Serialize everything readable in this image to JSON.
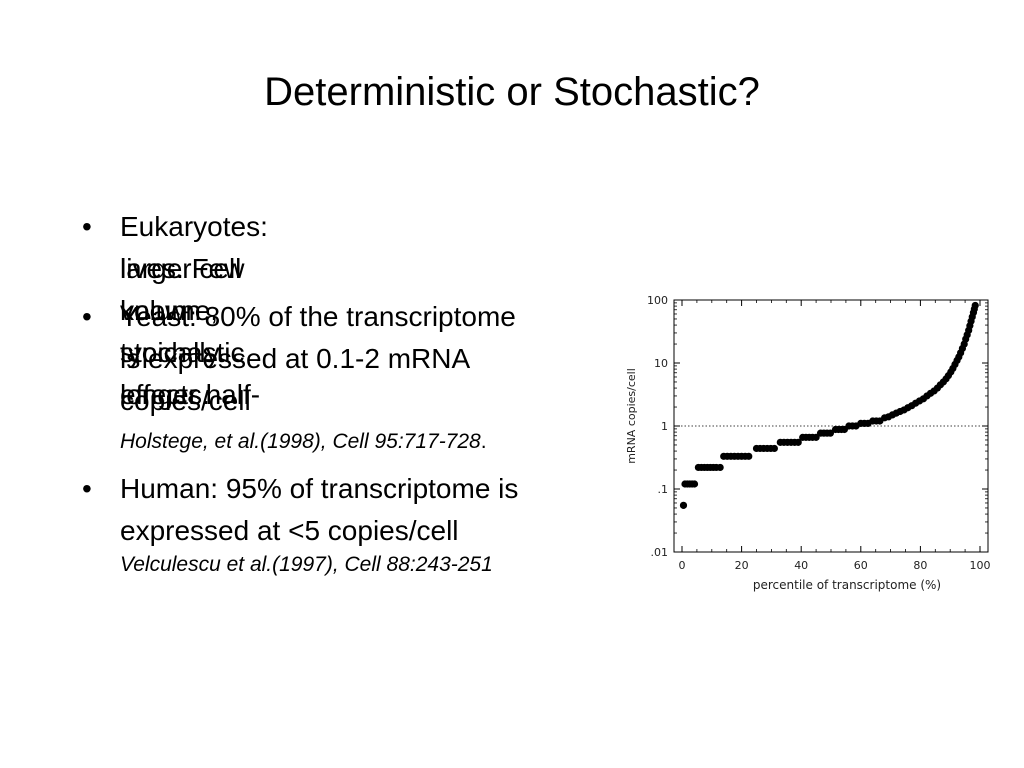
{
  "slide": {
    "title": "Deterministic or Stochastic?",
    "bullet_marker": "•",
    "bullets": [
      {
        "lines": [
          "Eukaryotes: larger cell volume, typically longer half-",
          "lives. Few known stochastic effects."
        ]
      },
      {
        "lines": [
          "Yeast: 80% of the transcriptome",
          "is expressed at 0.1-2 mRNA",
          "copies/cell"
        ],
        "citation": "Holstege, et al.(1998), Cell 95:717-728",
        "citation_suffix": "."
      },
      {
        "lines": [
          "Human: 95% of transcriptome is",
          "expressed at <5 copies/cell"
        ],
        "citation": "Velculescu et al.(1997), Cell 88:243-251"
      }
    ]
  },
  "chart_data": {
    "type": "scatter",
    "xlabel": "percentile of transcriptome (%)",
    "ylabel": "mRNA copies/cell",
    "xlim": [
      0,
      100
    ],
    "ylim": [
      0.01,
      100
    ],
    "y_scale": "log",
    "x_ticks": [
      0,
      20,
      40,
      60,
      80,
      100
    ],
    "x_tick_labels": [
      "0",
      "20",
      "40",
      "60",
      "80",
      "100"
    ],
    "y_ticks": [
      0.01,
      0.1,
      1,
      10,
      100
    ],
    "y_tick_labels": [
      ".01",
      ".1",
      "1",
      "10",
      "100"
    ],
    "reference_line_y": 1,
    "marker_color": "#000000",
    "series": [
      {
        "points": [
          [
            0.5,
            0.055
          ],
          [
            1,
            0.12
          ],
          [
            1.8,
            0.12
          ],
          [
            2.6,
            0.12
          ],
          [
            3.4,
            0.12
          ],
          [
            4.2,
            0.12
          ],
          [
            5.5,
            0.22
          ],
          [
            6.5,
            0.22
          ],
          [
            7.5,
            0.22
          ],
          [
            8.5,
            0.22
          ],
          [
            9.5,
            0.22
          ],
          [
            10.5,
            0.22
          ],
          [
            11.5,
            0.22
          ],
          [
            12.8,
            0.22
          ],
          [
            14,
            0.33
          ],
          [
            15.2,
            0.33
          ],
          [
            16.4,
            0.33
          ],
          [
            17.6,
            0.33
          ],
          [
            18.8,
            0.33
          ],
          [
            20,
            0.33
          ],
          [
            21.2,
            0.33
          ],
          [
            22.4,
            0.33
          ],
          [
            25,
            0.44
          ],
          [
            26.2,
            0.44
          ],
          [
            27.4,
            0.44
          ],
          [
            28.6,
            0.44
          ],
          [
            29.8,
            0.44
          ],
          [
            31.0,
            0.44
          ],
          [
            33,
            0.55
          ],
          [
            34.2,
            0.55
          ],
          [
            35.4,
            0.55
          ],
          [
            36.6,
            0.55
          ],
          [
            37.8,
            0.55
          ],
          [
            39.0,
            0.55
          ],
          [
            40.5,
            0.66
          ],
          [
            41.6,
            0.66
          ],
          [
            42.7,
            0.66
          ],
          [
            43.8,
            0.66
          ],
          [
            45.0,
            0.66
          ],
          [
            46.5,
            0.77
          ],
          [
            47.6,
            0.77
          ],
          [
            48.7,
            0.77
          ],
          [
            49.8,
            0.77
          ],
          [
            51.5,
            0.88
          ],
          [
            52.5,
            0.88
          ],
          [
            53.5,
            0.88
          ],
          [
            54.5,
            0.88
          ],
          [
            56,
            1.0
          ],
          [
            57.2,
            1.0
          ],
          [
            58.4,
            1.0
          ],
          [
            60,
            1.1
          ],
          [
            61.2,
            1.1
          ],
          [
            62.4,
            1.1
          ],
          [
            64,
            1.2
          ],
          [
            65.2,
            1.2
          ],
          [
            66.4,
            1.2
          ],
          [
            68,
            1.35
          ],
          [
            69.3,
            1.4
          ],
          [
            70.6,
            1.5
          ],
          [
            71.9,
            1.6
          ],
          [
            73.2,
            1.7
          ],
          [
            74.5,
            1.8
          ],
          [
            75.8,
            1.95
          ],
          [
            77.1,
            2.1
          ],
          [
            78.4,
            2.3
          ],
          [
            79.7,
            2.5
          ],
          [
            81,
            2.7
          ],
          [
            82.2,
            3.0
          ],
          [
            83.4,
            3.3
          ],
          [
            84.6,
            3.6
          ],
          [
            85.7,
            4.0
          ],
          [
            86.7,
            4.5
          ],
          [
            87.7,
            5.0
          ],
          [
            88.6,
            5.6
          ],
          [
            89.4,
            6.3
          ],
          [
            90.2,
            7.2
          ],
          [
            90.9,
            8.2
          ],
          [
            91.6,
            9.5
          ],
          [
            92.3,
            11
          ],
          [
            92.9,
            12.5
          ],
          [
            93.5,
            14.5
          ],
          [
            94.1,
            17
          ],
          [
            94.7,
            20
          ],
          [
            95.2,
            24
          ],
          [
            95.7,
            28
          ],
          [
            96.2,
            33
          ],
          [
            96.6,
            39
          ],
          [
            97.0,
            46
          ],
          [
            97.4,
            54
          ],
          [
            97.8,
            63
          ],
          [
            98.1,
            72
          ],
          [
            98.4,
            82
          ]
        ]
      }
    ]
  }
}
